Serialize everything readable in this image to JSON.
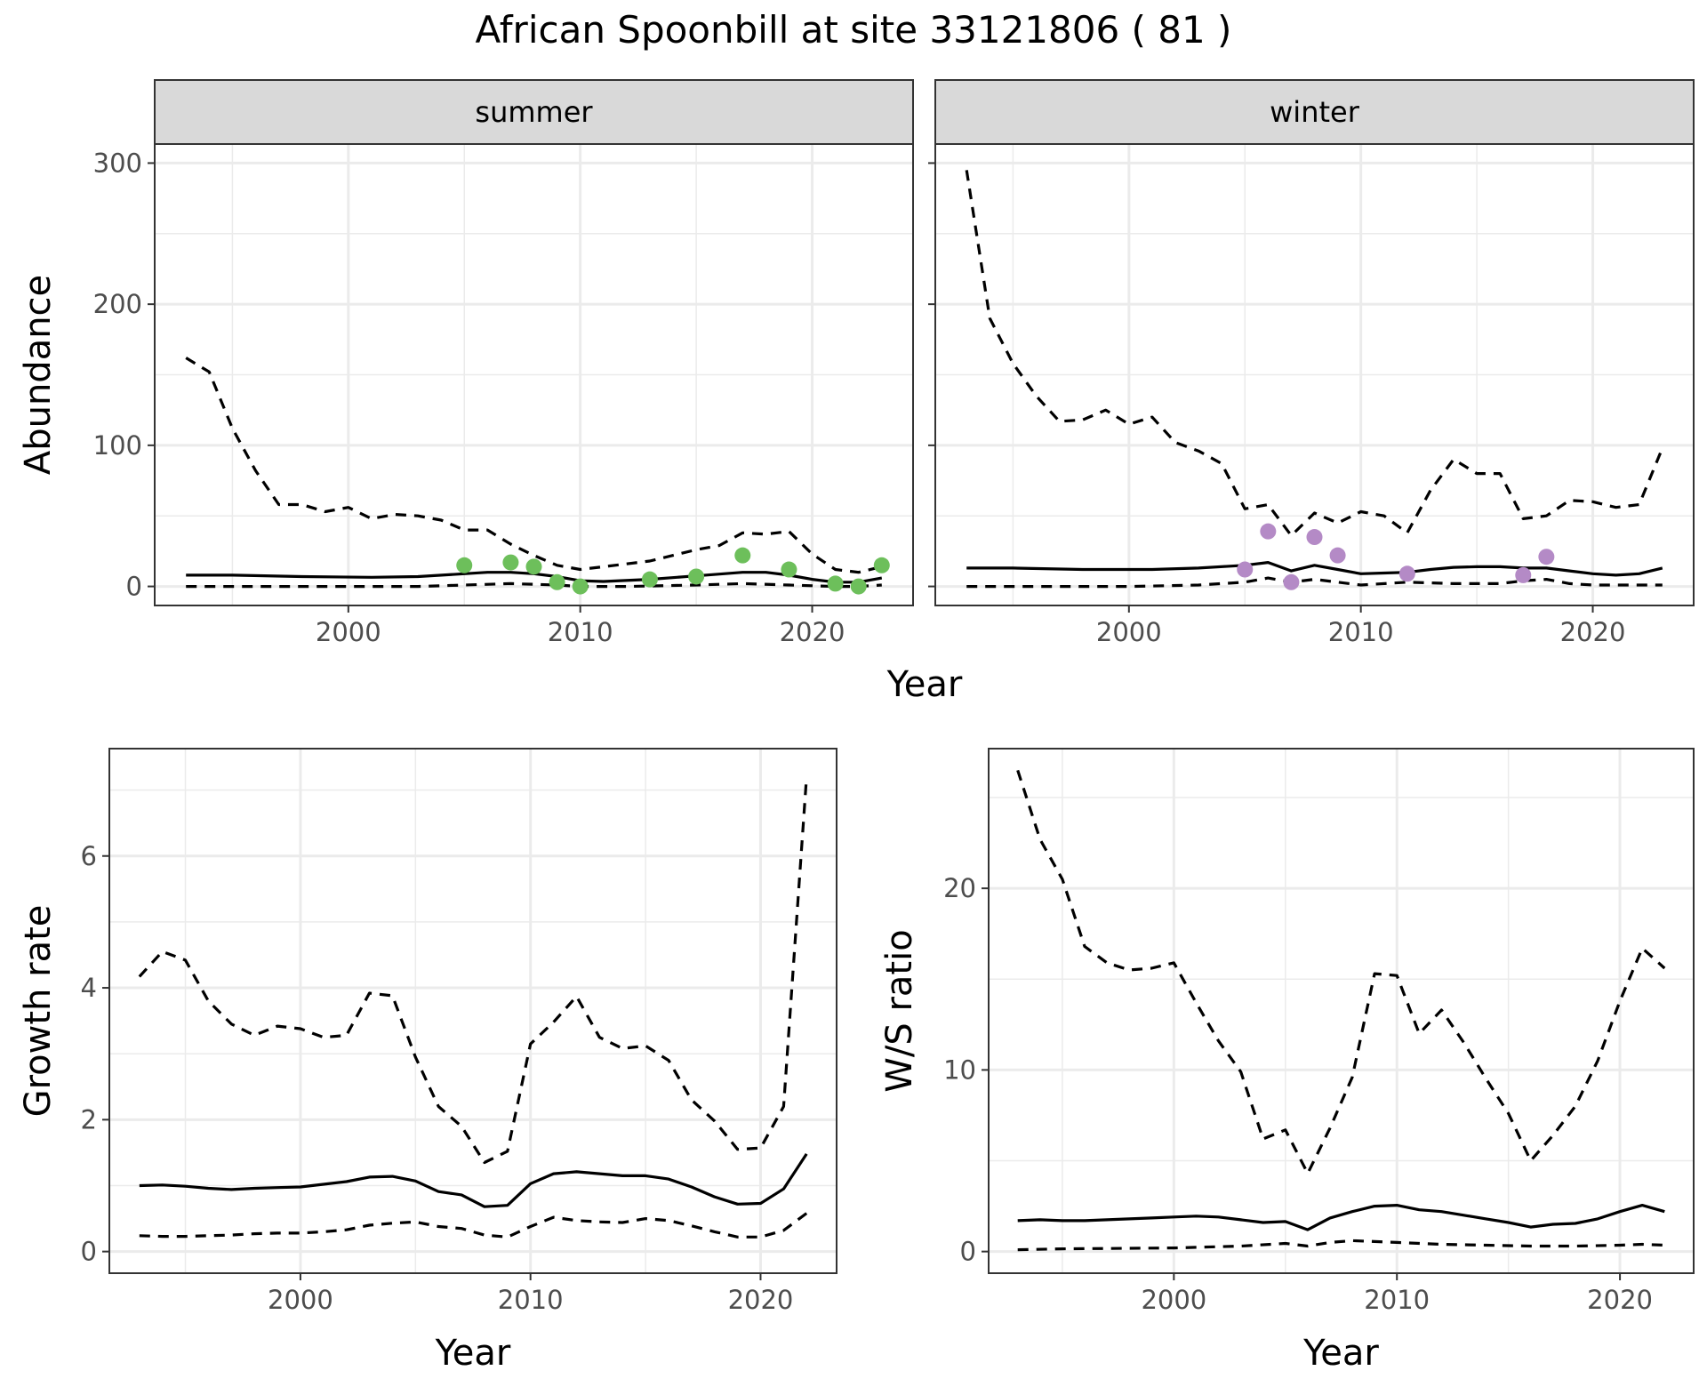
{
  "title": "African Spoonbill at site 33121806 ( 81 )",
  "colors": {
    "summer_points": "#6dbf5b",
    "winter_points": "#b48ac6",
    "lines": "#000000",
    "strip": "#d9d9d9",
    "grid": "#ebebeb"
  },
  "chart_data": [
    {
      "type": "line",
      "panel": "summer",
      "strip_label": "summer",
      "xlim": [
        1993,
        2023
      ],
      "ylim": [
        0,
        300
      ],
      "xticks": [
        2000,
        2010,
        2020
      ],
      "yticks": [
        0,
        100,
        200,
        300
      ],
      "ylabel": "Abundance",
      "xlabel": "Year",
      "grid": true,
      "series": [
        {
          "style": "solid",
          "x": [
            1993,
            1995,
            1998,
            2001,
            2003,
            2005,
            2006,
            2007,
            2008,
            2009,
            2010,
            2011,
            2013,
            2015,
            2017,
            2018,
            2019,
            2020,
            2021,
            2022,
            2023
          ],
          "y": [
            8,
            8,
            7,
            6.5,
            7,
            9,
            10,
            10,
            9,
            7,
            4,
            3.5,
            5,
            7.5,
            10,
            10,
            8,
            5,
            3,
            3,
            6
          ]
        },
        {
          "style": "dashed",
          "x": [
            1993,
            1994,
            1995,
            1996,
            1997,
            1998,
            1999,
            2000,
            2001,
            2002,
            2003,
            2004,
            2005,
            2006,
            2007,
            2008,
            2009,
            2010,
            2011,
            2013,
            2015,
            2016,
            2017,
            2018,
            2019,
            2020,
            2021,
            2022,
            2023
          ],
          "y": [
            162,
            152,
            112,
            82,
            58,
            58,
            53,
            56,
            48,
            51,
            50,
            47,
            40,
            40,
            30,
            22,
            15,
            12,
            14,
            18,
            26,
            29,
            38,
            37,
            39,
            23,
            12,
            10,
            14
          ]
        },
        {
          "style": "dashed",
          "x": [
            1993,
            2000,
            2003,
            2005,
            2007,
            2009,
            2010,
            2012,
            2015,
            2017,
            2019,
            2021,
            2022,
            2023
          ],
          "y": [
            0,
            0,
            0,
            1,
            2,
            1,
            0,
            0,
            1,
            2,
            1,
            0,
            0,
            1
          ]
        }
      ],
      "points": {
        "x": [
          2005,
          2007,
          2008,
          2009,
          2010,
          2013,
          2015,
          2017,
          2019,
          2021,
          2022,
          2023
        ],
        "y": [
          15,
          17,
          14,
          3,
          0,
          5,
          7,
          22,
          12,
          2,
          0,
          15
        ]
      }
    },
    {
      "type": "line",
      "panel": "winter",
      "strip_label": "winter",
      "xlim": [
        1993,
        2023
      ],
      "ylim": [
        0,
        300
      ],
      "xticks": [
        2000,
        2010,
        2020
      ],
      "yticks": [
        0,
        100,
        200,
        300
      ],
      "ylabel": "Abundance",
      "xlabel": "Year",
      "grid": true,
      "series": [
        {
          "style": "solid",
          "x": [
            1993,
            1995,
            1998,
            2001,
            2003,
            2005,
            2006,
            2007,
            2008,
            2009,
            2010,
            2011,
            2012,
            2013,
            2014,
            2015,
            2016,
            2017,
            2018,
            2019,
            2020,
            2021,
            2022,
            2023
          ],
          "y": [
            13,
            13,
            12,
            12,
            13,
            15,
            17,
            11,
            15,
            12,
            9,
            9.5,
            10,
            12,
            13.5,
            14,
            14,
            13,
            13,
            11,
            9,
            8,
            9,
            13
          ]
        },
        {
          "style": "dashed",
          "x": [
            1993,
            1994,
            1995,
            1996,
            1997,
            1998,
            1999,
            2000,
            2001,
            2002,
            2003,
            2004,
            2005,
            2006,
            2007,
            2008,
            2009,
            2010,
            2011,
            2012,
            2013,
            2014,
            2015,
            2016,
            2017,
            2018,
            2019,
            2020,
            2021,
            2022,
            2023
          ],
          "y": [
            295,
            190,
            158,
            135,
            117,
            118,
            125,
            115,
            120,
            102,
            96,
            87,
            55,
            58,
            36,
            52,
            45,
            53,
            50,
            38,
            68,
            90,
            80,
            80,
            48,
            50,
            61,
            60,
            56,
            58,
            98
          ]
        },
        {
          "style": "dashed",
          "x": [
            1993,
            2000,
            2003,
            2005,
            2006,
            2007,
            2008,
            2009,
            2010,
            2012,
            2014,
            2016,
            2017,
            2018,
            2019,
            2020,
            2023
          ],
          "y": [
            0,
            0,
            1,
            3,
            6,
            3,
            5,
            3,
            1,
            3,
            2,
            2,
            4,
            5,
            2,
            1,
            1
          ]
        }
      ],
      "points": {
        "x": [
          2005,
          2006,
          2007,
          2008,
          2009,
          2012,
          2017,
          2018
        ],
        "y": [
          12,
          39,
          3,
          35,
          22,
          9,
          8,
          21
        ]
      }
    },
    {
      "type": "line",
      "panel": "growth",
      "xlim": [
        1993,
        2022
      ],
      "ylim": [
        0,
        7.3
      ],
      "xticks": [
        2000,
        2010,
        2020
      ],
      "yticks": [
        0,
        2,
        4,
        6
      ],
      "ylabel": "Growth rate",
      "xlabel": "Year",
      "grid": true,
      "series": [
        {
          "style": "solid",
          "x": [
            1993,
            1994,
            1995,
            1996,
            1997,
            1998,
            1999,
            2000,
            2001,
            2002,
            2003,
            2004,
            2005,
            2006,
            2007,
            2008,
            2009,
            2010,
            2011,
            2012,
            2013,
            2014,
            2015,
            2016,
            2017,
            2018,
            2019,
            2020,
            2021,
            2022
          ],
          "y": [
            1.0,
            1.01,
            0.99,
            0.96,
            0.94,
            0.96,
            0.97,
            0.98,
            1.02,
            1.06,
            1.13,
            1.14,
            1.07,
            0.91,
            0.86,
            0.68,
            0.7,
            1.03,
            1.18,
            1.21,
            1.18,
            1.15,
            1.15,
            1.1,
            0.98,
            0.83,
            0.72,
            0.73,
            0.95,
            1.48
          ]
        },
        {
          "style": "dashed",
          "x": [
            1993,
            1994,
            1995,
            1996,
            1997,
            1998,
            1999,
            2000,
            2001,
            2002,
            2003,
            2004,
            2005,
            2006,
            2007,
            2008,
            2009,
            2010,
            2011,
            2012,
            2013,
            2014,
            2015,
            2016,
            2017,
            2018,
            2019,
            2020,
            2021,
            2022
          ],
          "y": [
            4.17,
            4.55,
            4.42,
            3.8,
            3.45,
            3.28,
            3.42,
            3.38,
            3.25,
            3.28,
            3.92,
            3.88,
            2.95,
            2.2,
            1.9,
            1.35,
            1.52,
            3.15,
            3.48,
            3.87,
            3.25,
            3.08,
            3.12,
            2.9,
            2.3,
            1.98,
            1.55,
            1.57,
            2.2,
            7.2
          ]
        },
        {
          "style": "dashed",
          "x": [
            1993,
            1994,
            1995,
            1996,
            1997,
            1998,
            1999,
            2000,
            2001,
            2002,
            2003,
            2004,
            2005,
            2006,
            2007,
            2008,
            2009,
            2010,
            2011,
            2012,
            2013,
            2014,
            2015,
            2016,
            2017,
            2018,
            2019,
            2020,
            2021,
            2022
          ],
          "y": [
            0.24,
            0.23,
            0.23,
            0.24,
            0.25,
            0.27,
            0.28,
            0.28,
            0.3,
            0.33,
            0.4,
            0.43,
            0.45,
            0.38,
            0.35,
            0.25,
            0.22,
            0.38,
            0.52,
            0.47,
            0.45,
            0.44,
            0.5,
            0.47,
            0.39,
            0.3,
            0.22,
            0.22,
            0.32,
            0.58
          ]
        }
      ]
    },
    {
      "type": "line",
      "panel": "ratio",
      "xlim": [
        1993,
        2022
      ],
      "ylim": [
        0,
        26.5
      ],
      "xticks": [
        2000,
        2010,
        2020
      ],
      "yticks": [
        0,
        10,
        20
      ],
      "ylabel": "W/S ratio",
      "xlabel": "Year",
      "grid": true,
      "series": [
        {
          "style": "solid",
          "x": [
            1993,
            1994,
            1995,
            1996,
            1997,
            1998,
            1999,
            2000,
            2001,
            2002,
            2003,
            2004,
            2005,
            2006,
            2007,
            2008,
            2009,
            2010,
            2011,
            2012,
            2013,
            2014,
            2015,
            2016,
            2017,
            2018,
            2019,
            2020,
            2021,
            2022
          ],
          "y": [
            1.7,
            1.75,
            1.7,
            1.7,
            1.75,
            1.8,
            1.85,
            1.9,
            1.95,
            1.9,
            1.75,
            1.6,
            1.65,
            1.2,
            1.85,
            2.2,
            2.5,
            2.55,
            2.3,
            2.2,
            2.0,
            1.8,
            1.6,
            1.35,
            1.5,
            1.55,
            1.8,
            2.2,
            2.55,
            2.2
          ]
        },
        {
          "style": "dashed",
          "x": [
            1993,
            1994,
            1995,
            1996,
            1997,
            1998,
            1999,
            2000,
            2001,
            2002,
            2003,
            2004,
            2005,
            2006,
            2007,
            2008,
            2009,
            2010,
            2011,
            2012,
            2013,
            2014,
            2015,
            2016,
            2017,
            2018,
            2019,
            2020,
            2021,
            2022
          ],
          "y": [
            26.5,
            22.7,
            20.5,
            16.8,
            15.9,
            15.5,
            15.6,
            15.9,
            13.7,
            11.6,
            9.9,
            6.2,
            6.7,
            4.3,
            6.8,
            9.6,
            15.3,
            15.2,
            12.0,
            13.3,
            11.5,
            9.5,
            7.6,
            5.0,
            6.4,
            8.0,
            10.5,
            13.8,
            16.7,
            15.6
          ]
        },
        {
          "style": "dashed",
          "x": [
            1993,
            1995,
            2000,
            2003,
            2005,
            2006,
            2007,
            2008,
            2010,
            2012,
            2014,
            2016,
            2018,
            2020,
            2021,
            2022
          ],
          "y": [
            0.1,
            0.15,
            0.2,
            0.3,
            0.45,
            0.3,
            0.5,
            0.6,
            0.5,
            0.4,
            0.35,
            0.3,
            0.3,
            0.35,
            0.4,
            0.35
          ]
        }
      ]
    }
  ]
}
